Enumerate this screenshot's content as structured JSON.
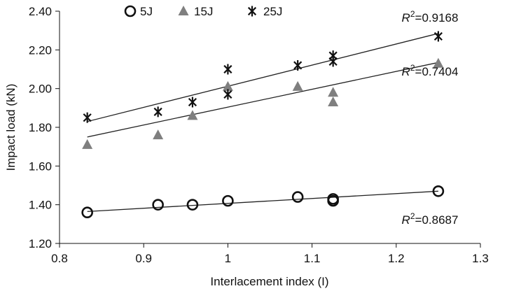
{
  "chart_data": {
    "type": "scatter",
    "xlabel": "Interlacement index (I)",
    "ylabel": "Impact load (kN)",
    "xlim": [
      0.8,
      1.3
    ],
    "ylim": [
      1.2,
      2.4
    ],
    "x_ticks": [
      "0.8",
      "0.9",
      "1",
      "1.1",
      "1.2",
      "1.3"
    ],
    "y_ticks": [
      "1.20",
      "1.40",
      "1.60",
      "1.80",
      "2.00",
      "2.20",
      "2.40"
    ],
    "grid": false,
    "legend_position": "top",
    "series": [
      {
        "name": "5J",
        "marker": "open-circle",
        "color": "#111111",
        "points": [
          [
            0.833,
            1.36
          ],
          [
            0.917,
            1.4
          ],
          [
            0.958,
            1.4
          ],
          [
            1.0,
            1.42
          ],
          [
            1.083,
            1.44
          ],
          [
            1.125,
            1.43
          ],
          [
            1.125,
            1.42
          ],
          [
            1.25,
            1.47
          ]
        ],
        "trendline": [
          [
            0.833,
            1.365
          ],
          [
            1.25,
            1.47
          ]
        ],
        "r2_prefix": "R",
        "r2_sup": "2",
        "r2_value": "=0.8687"
      },
      {
        "name": "15J",
        "marker": "filled-triangle",
        "color": "#7f7f7f",
        "points": [
          [
            0.833,
            1.71
          ],
          [
            0.917,
            1.76
          ],
          [
            0.958,
            1.86
          ],
          [
            1.0,
            2.01
          ],
          [
            1.083,
            2.01
          ],
          [
            1.125,
            1.98
          ],
          [
            1.125,
            1.93
          ],
          [
            1.25,
            2.13
          ]
        ],
        "trendline": [
          [
            0.833,
            1.75
          ],
          [
            1.25,
            2.135
          ]
        ],
        "r2_prefix": "R",
        "r2_sup": "2",
        "r2_value": "=0.7404"
      },
      {
        "name": "25J",
        "marker": "asterisk",
        "color": "#111111",
        "points": [
          [
            0.833,
            1.85
          ],
          [
            0.917,
            1.88
          ],
          [
            0.958,
            1.93
          ],
          [
            1.0,
            2.1
          ],
          [
            1.0,
            1.97
          ],
          [
            1.083,
            2.12
          ],
          [
            1.125,
            2.17
          ],
          [
            1.125,
            2.14
          ],
          [
            1.25,
            2.27
          ]
        ],
        "trendline": [
          [
            0.833,
            1.83
          ],
          [
            1.25,
            2.285
          ]
        ],
        "r2_prefix": "R",
        "r2_sup": "2",
        "r2_value": "=0.9168"
      }
    ]
  }
}
